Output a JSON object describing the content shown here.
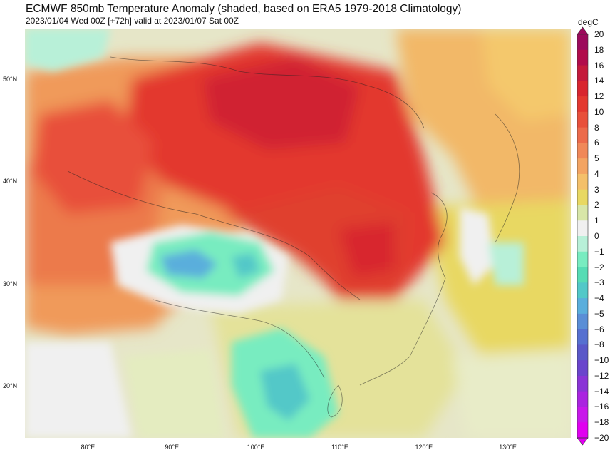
{
  "header": {
    "title": "ECMWF 850mb Temperature Anomaly (shaded, based on ERA5 1979-2018 Climatology)",
    "subtitle": "2023/01/04 Wed 00Z [+72h] valid at 2023/01/07 Sat 00Z"
  },
  "map": {
    "lat_labels": [
      {
        "text": "50°N",
        "lat": 50
      },
      {
        "text": "40°N",
        "lat": 40
      },
      {
        "text": "30°N",
        "lat": 30
      },
      {
        "text": "20°N",
        "lat": 20
      }
    ],
    "lon_labels": [
      {
        "text": "80°E",
        "lon": 80
      },
      {
        "text": "90°E",
        "lon": 90
      },
      {
        "text": "100°E",
        "lon": 100
      },
      {
        "text": "110°E",
        "lon": 110
      },
      {
        "text": "120°E",
        "lon": 120
      },
      {
        "text": "130°E",
        "lon": 130
      }
    ],
    "lon_range": [
      72.5,
      137.5
    ],
    "lat_range": [
      15,
      55
    ]
  },
  "colorbar": {
    "unit": "degC",
    "ticks": [
      "20",
      "18",
      "16",
      "14",
      "12",
      "10",
      "8",
      "6",
      "5",
      "4",
      "3",
      "2",
      "1",
      "0",
      "−1",
      "−2",
      "−3",
      "−4",
      "−5",
      "−6",
      "−8",
      "−10",
      "−12",
      "−14",
      "−16",
      "−18",
      "−20"
    ],
    "colors": [
      "#9c0a5c",
      "#b10c4a",
      "#c41a3a",
      "#d8252e",
      "#e3382f",
      "#e8503a",
      "#ec6a4a",
      "#f08858",
      "#f3a462",
      "#f4c06a",
      "#e8d862",
      "#d8e6a8",
      "#f0f0f0",
      "#b8f0d8",
      "#78ecc0",
      "#56dcb4",
      "#52c8c8",
      "#5aaedc",
      "#5a8ed6",
      "#5670d0",
      "#5a58c8",
      "#6a44cc",
      "#8a34d6",
      "#aa24e0",
      "#c818ea",
      "#e000f0"
    ]
  }
}
